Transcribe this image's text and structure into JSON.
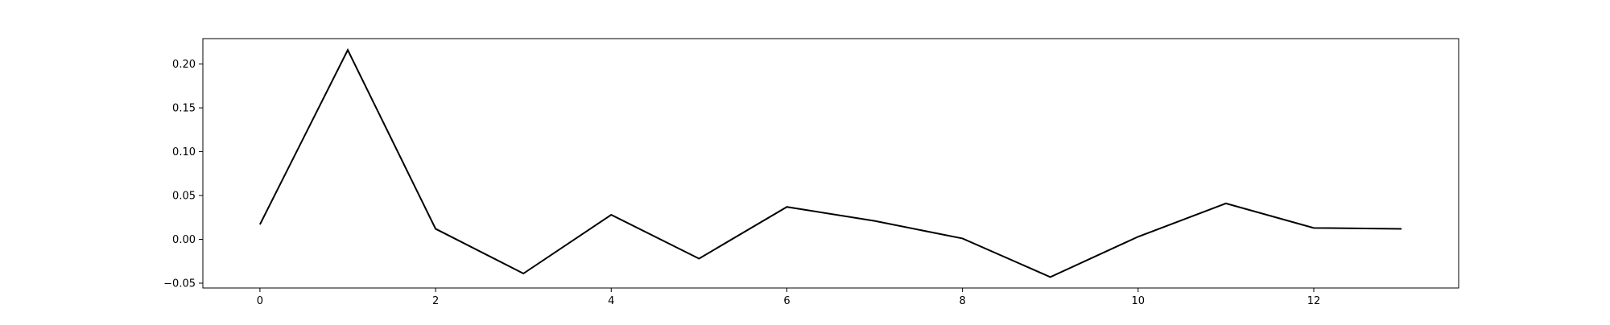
{
  "chart_data": {
    "type": "line",
    "title": "",
    "xlabel": "",
    "ylabel": "",
    "xlim": [
      -0.65,
      13.65
    ],
    "ylim": [
      -0.0555,
      0.229
    ],
    "xticks": [
      0,
      2,
      4,
      6,
      8,
      10,
      12
    ],
    "xtick_labels": [
      "0",
      "2",
      "4",
      "6",
      "8",
      "10",
      "12"
    ],
    "yticks": [
      -0.05,
      0.0,
      0.05,
      0.1,
      0.15,
      0.2
    ],
    "ytick_labels": [
      "−0.05",
      "0.00",
      "0.05",
      "0.10",
      "0.15",
      "0.20"
    ],
    "grid": false,
    "series": [
      {
        "color": "#000000",
        "x": [
          0,
          1,
          2,
          3,
          4,
          5,
          6,
          7,
          8,
          9,
          10,
          11,
          12,
          13
        ],
        "values": [
          0.017,
          0.216,
          0.012,
          -0.039,
          0.028,
          -0.022,
          0.037,
          0.021,
          0.001,
          -0.043,
          0.003,
          0.041,
          0.013,
          0.012
        ]
      }
    ]
  }
}
